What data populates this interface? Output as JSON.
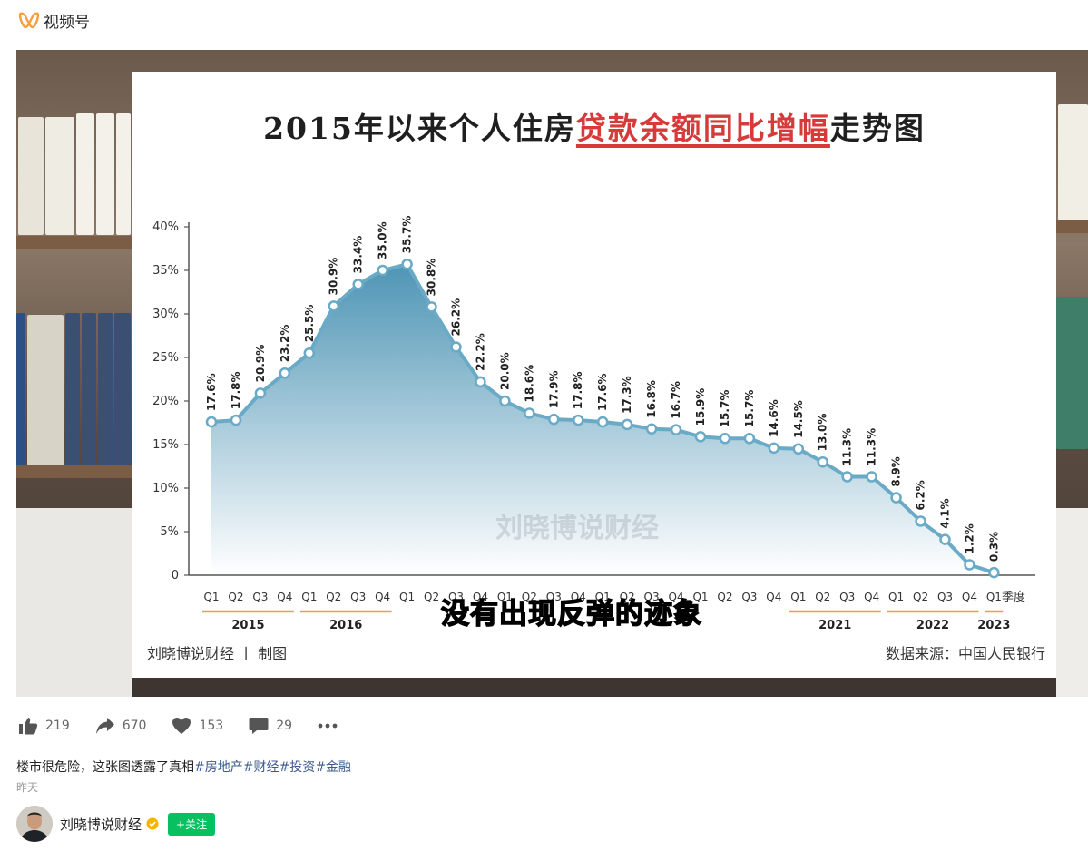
{
  "app": {
    "title": "视频号",
    "brand_color": "#fa9d3b"
  },
  "video": {
    "subtitle": "没有出现反弹的迹象",
    "watermark": "刘晓博说财经",
    "credit_left": "刘晓博说财经 丨 制图",
    "credit_right": "数据来源：中国人民银行"
  },
  "slide": {
    "title_before": "2015年以来个人住房",
    "title_highlight": "贷款余额同比增幅",
    "title_after": "走势图"
  },
  "chart_data": {
    "type": "area",
    "title": "2015年以来个人住房贷款余额同比增幅走势图",
    "xlabel": "季度",
    "ylabel": "",
    "ylim": [
      0,
      40
    ],
    "y_ticks": [
      "0",
      "5%",
      "10%",
      "15%",
      "20%",
      "25%",
      "30%",
      "35%",
      "40%"
    ],
    "quarters": [
      "Q1",
      "Q2",
      "Q3",
      "Q4",
      "Q1",
      "Q2",
      "Q3",
      "Q4",
      "Q1",
      "Q2",
      "Q3",
      "Q4",
      "Q1",
      "Q2",
      "Q3",
      "Q4",
      "Q1",
      "Q2",
      "Q3",
      "Q4",
      "Q1",
      "Q2",
      "Q3",
      "Q4",
      "Q1",
      "Q2",
      "Q3",
      "Q4",
      "Q1",
      "Q2",
      "Q3",
      "Q4",
      "Q1"
    ],
    "years": [
      {
        "label": "2015",
        "start": 0,
        "end": 3
      },
      {
        "label": "2016",
        "start": 4,
        "end": 7
      },
      {
        "label": "2021",
        "start": 24,
        "end": 27
      },
      {
        "label": "2022",
        "start": 28,
        "end": 31
      },
      {
        "label": "2023",
        "start": 32,
        "end": 32
      }
    ],
    "values": [
      17.6,
      17.8,
      20.9,
      23.2,
      25.5,
      30.9,
      33.4,
      35.0,
      35.7,
      30.8,
      26.2,
      22.2,
      20.0,
      18.6,
      17.9,
      17.8,
      17.6,
      17.3,
      16.8,
      16.7,
      15.9,
      15.7,
      15.7,
      14.6,
      14.5,
      13.0,
      11.3,
      11.3,
      8.9,
      6.2,
      4.1,
      1.2,
      0.3
    ],
    "labels": [
      "17.6%",
      "17.8%",
      "20.9%",
      "23.2%",
      "25.5%",
      "30.9%",
      "33.4%",
      "35.0%",
      "35.7%",
      "30.8%",
      "26.2%",
      "22.2%",
      "20.0%",
      "18.6%",
      "17.9%",
      "17.8%",
      "17.6%",
      "17.3%",
      "16.8%",
      "16.7%",
      "15.9%",
      "15.7%",
      "15.7%",
      "14.6%",
      "14.5%",
      "13.0%",
      "11.3%",
      "11.3%",
      "8.9%",
      "6.2%",
      "4.1%",
      "1.2%",
      "0.3%"
    ],
    "line_color": "#6aaac6",
    "accent": "#f0a040",
    "grid": false
  },
  "actions": [
    {
      "icon": "thumb-up-icon",
      "count": "219"
    },
    {
      "icon": "share-icon",
      "count": "670"
    },
    {
      "icon": "heart-icon",
      "count": "153"
    },
    {
      "icon": "comment-icon",
      "count": "29"
    }
  ],
  "post": {
    "text": "楼市很危险，这张图透露了真相",
    "tags": [
      "#房地产",
      "#财经",
      "#投资",
      "#金融"
    ],
    "time": "昨天"
  },
  "author": {
    "name": "刘晓博说财经",
    "follow_label": "+关注",
    "verified_color": "#f5b400"
  }
}
